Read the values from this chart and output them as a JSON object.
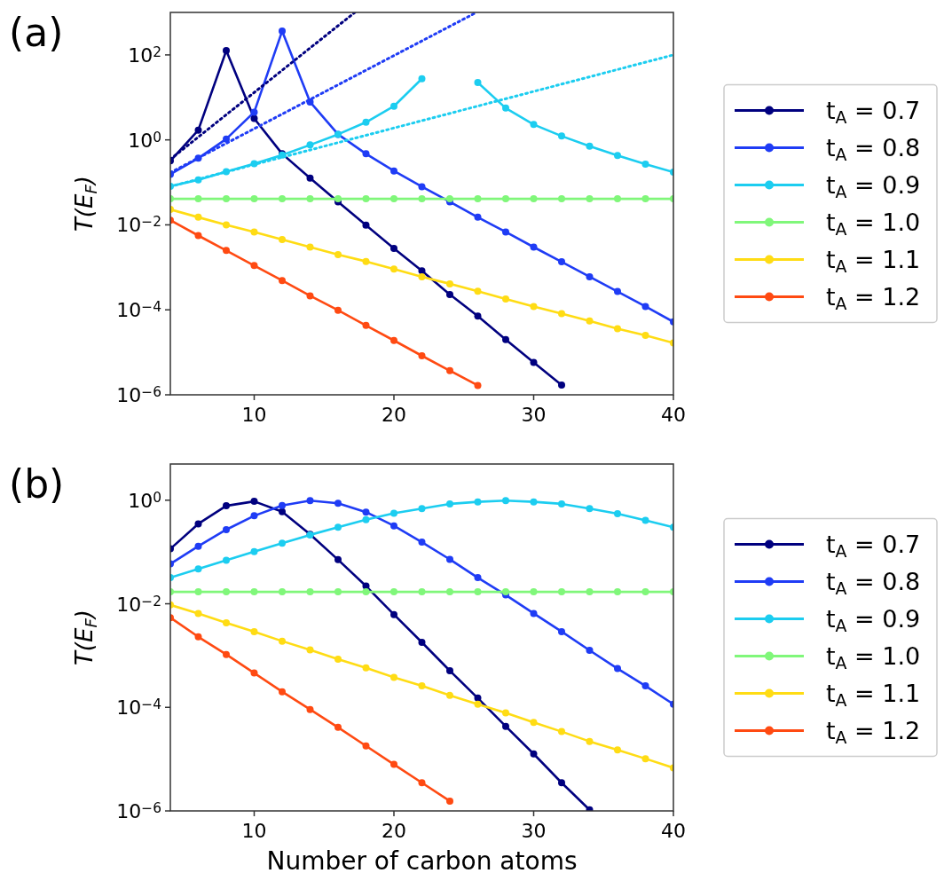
{
  "chart_data": [
    {
      "type": "line",
      "title": "(a)",
      "ylabel": "T(E$_{F}$)",
      "log": "y",
      "legend": "right",
      "marker": "circle",
      "x": [
        4,
        6,
        8,
        10,
        12,
        14,
        16,
        18,
        20,
        22,
        24,
        26,
        28,
        30,
        32,
        34,
        36,
        38,
        40
      ],
      "xlim": [
        4,
        40
      ],
      "xticks": [
        10,
        20,
        30,
        40
      ],
      "ylim": [
        1e-06,
        1000
      ],
      "yticks": [
        {
          "value": 1e-06,
          "label": "10$^{−6}$"
        },
        {
          "value": 0.0001,
          "label": "10$^{−4}$"
        },
        {
          "value": 0.01,
          "label": "10$^{−2}$"
        },
        {
          "value": 1,
          "label": "10$^{0}$"
        },
        {
          "value": 100,
          "label": "10$^{2}$"
        }
      ],
      "series": [
        {
          "name": "t$_{A}$ = 0.7",
          "color": "#00007f",
          "values": [
            0.32,
            1.7,
            126,
            3.2,
            0.47,
            0.126,
            0.035,
            0.0098,
            0.0028,
            0.00083,
            0.00023,
            7.1e-05,
            2e-05,
            5.8e-06,
            1.7e-06,
            null,
            null,
            null,
            null
          ]
        },
        {
          "name": "t$_{A}$ = 0.8",
          "color": "#1f3cf5",
          "values": [
            0.155,
            0.37,
            1.05,
            4.5,
            363,
            7.8,
            1.35,
            0.47,
            0.186,
            0.079,
            0.035,
            0.0151,
            0.0068,
            0.003,
            0.00135,
            0.0006,
            0.00027,
            0.00012,
            5.2e-05
          ]
        },
        {
          "name": "t$_{A}$ = 0.9",
          "color": "#1ccdf0",
          "values": [
            0.081,
            0.115,
            0.178,
            0.275,
            0.44,
            0.76,
            1.35,
            2.6,
            6.2,
            27.5,
            null,
            22.4,
            5.6,
            2.3,
            1.23,
            0.71,
            0.43,
            0.27,
            0.174
          ]
        },
        {
          "name": "t$_{A}$ = 1.0",
          "color": "#80f77a",
          "values": [
            0.041,
            0.041,
            0.041,
            0.041,
            0.041,
            0.041,
            0.041,
            0.041,
            0.041,
            0.041,
            0.041,
            0.041,
            0.041,
            0.041,
            0.041,
            0.041,
            0.041,
            0.041,
            0.041
          ]
        },
        {
          "name": "t$_{A}$ = 1.1",
          "color": "#ffdc14",
          "values": [
            0.023,
            0.0151,
            0.01,
            0.0068,
            0.0045,
            0.003,
            0.002,
            0.00138,
            0.00091,
            0.0006,
            0.00041,
            0.000275,
            0.00018,
            0.00012,
            8.1e-05,
            5.5e-05,
            3.6e-05,
            2.5e-05,
            1.66e-05
          ]
        },
        {
          "name": "t$_{A}$ = 1.2",
          "color": "#ff4a12",
          "values": [
            0.0129,
            0.0056,
            0.0025,
            0.0011,
            0.00049,
            0.000214,
            9.8e-05,
            4.3e-05,
            1.9e-05,
            8.3e-06,
            3.7e-06,
            1.66e-06,
            null,
            null,
            null,
            null,
            null,
            null,
            null
          ]
        },
        {
          "color": "#00007f",
          "x": [
            4,
            17.2
          ],
          "values": [
            0.35,
            1000
          ],
          "marker": "none",
          "line_style": "dotted"
        },
        {
          "color": "#1f3cf5",
          "x": [
            4,
            25.9
          ],
          "values": [
            0.17,
            1000
          ],
          "marker": "none",
          "line_style": "dotted"
        },
        {
          "color": "#1ccdf0",
          "x": [
            4,
            40
          ],
          "values": [
            0.08,
            100
          ],
          "marker": "none",
          "line_style": "dotted"
        }
      ]
    },
    {
      "type": "line",
      "title": "(b)",
      "xlabel": "Number of carbon atoms",
      "ylabel": "T(E$_{F}$)",
      "log": "y",
      "legend": "right",
      "marker": "circle",
      "x": [
        4,
        6,
        8,
        10,
        12,
        14,
        16,
        18,
        20,
        22,
        24,
        26,
        28,
        30,
        32,
        34,
        36,
        38,
        40
      ],
      "xlim": [
        4,
        40
      ],
      "xticks": [
        10,
        20,
        30,
        40
      ],
      "ylim": [
        1e-06,
        5
      ],
      "yticks": [
        {
          "value": 1e-06,
          "label": "10$^{−6}$"
        },
        {
          "value": 0.0001,
          "label": "10$^{−4}$"
        },
        {
          "value": 0.01,
          "label": "10$^{−2}$"
        },
        {
          "value": 1,
          "label": "10$^{0}$"
        }
      ],
      "series": [
        {
          "name": "t$_{A}$ = 0.7",
          "color": "#00007f",
          "values": [
            0.115,
            0.35,
            0.78,
            0.95,
            0.6,
            0.22,
            0.071,
            0.022,
            0.0062,
            0.0018,
            0.00051,
            0.000151,
            4.3e-05,
            1.26e-05,
            3.5e-06,
            1.05e-06,
            null,
            null,
            null
          ]
        },
        {
          "name": "t$_{A}$ = 0.8",
          "color": "#1f3cf5",
          "values": [
            0.059,
            0.129,
            0.27,
            0.5,
            0.79,
            0.98,
            0.87,
            0.59,
            0.32,
            0.155,
            0.072,
            0.032,
            0.0148,
            0.0065,
            0.0029,
            0.00126,
            0.00056,
            0.00026,
            0.000115
          ]
        },
        {
          "name": "t$_{A}$ = 0.9",
          "color": "#1ccdf0",
          "values": [
            0.032,
            0.047,
            0.069,
            0.102,
            0.148,
            0.214,
            0.3,
            0.42,
            0.56,
            0.69,
            0.85,
            0.93,
            0.98,
            0.93,
            0.85,
            0.69,
            0.55,
            0.41,
            0.3
          ]
        },
        {
          "name": "t$_{A}$ = 1.0",
          "color": "#80f77a",
          "values": [
            0.017,
            0.017,
            0.017,
            0.017,
            0.017,
            0.017,
            0.017,
            0.017,
            0.017,
            0.017,
            0.017,
            0.017,
            0.017,
            0.017,
            0.017,
            0.017,
            0.017,
            0.017,
            0.017
          ]
        },
        {
          "name": "t$_{A}$ = 1.1",
          "color": "#ffdc14",
          "values": [
            0.0095,
            0.0065,
            0.0043,
            0.0029,
            0.0019,
            0.00129,
            0.00085,
            0.00058,
            0.00038,
            0.00026,
            0.00017,
            0.000115,
            7.8e-05,
            5.1e-05,
            3.4e-05,
            2.2e-05,
            1.5e-05,
            1.02e-05,
            6.8e-06
          ]
        },
        {
          "name": "t$_{A}$ = 1.2",
          "color": "#ff4a12",
          "values": [
            0.0054,
            0.0023,
            0.00105,
            0.00046,
            0.0002,
            9.1e-05,
            4.1e-05,
            1.8e-05,
            7.9e-06,
            3.5e-06,
            1.55e-06,
            null,
            null,
            null,
            null,
            null,
            null,
            null,
            null
          ]
        }
      ]
    }
  ]
}
